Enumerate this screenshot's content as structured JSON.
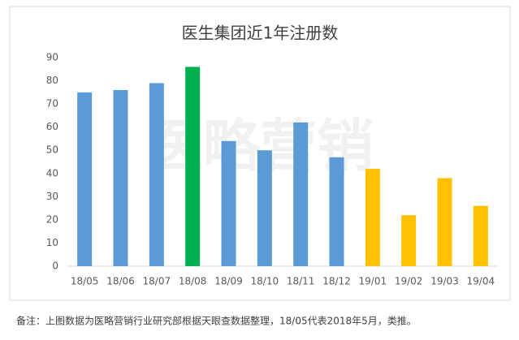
{
  "chart_data": {
    "type": "bar",
    "title": "医生集团近1年注册数",
    "categories": [
      "18/05",
      "18/06",
      "18/07",
      "18/08",
      "18/09",
      "18/10",
      "18/11",
      "18/12",
      "19/01",
      "19/02",
      "19/03",
      "19/04"
    ],
    "values": [
      75,
      76,
      79,
      86,
      54,
      50,
      62,
      47,
      42,
      22,
      38,
      26
    ],
    "colors": [
      "#5b9bd5",
      "#5b9bd5",
      "#5b9bd5",
      "#00b050",
      "#5b9bd5",
      "#5b9bd5",
      "#5b9bd5",
      "#5b9bd5",
      "#ffc000",
      "#ffc000",
      "#ffc000",
      "#ffc000"
    ],
    "ylim": [
      0,
      90
    ],
    "yticks": [
      0,
      10,
      20,
      30,
      40,
      50,
      60,
      70,
      80,
      90
    ],
    "grid": false,
    "watermark": "医略营销"
  },
  "footnote": "备注：上图数据为医略营销行业研究部根据天眼查数据整理，18/05代表2018年5月，类推。"
}
